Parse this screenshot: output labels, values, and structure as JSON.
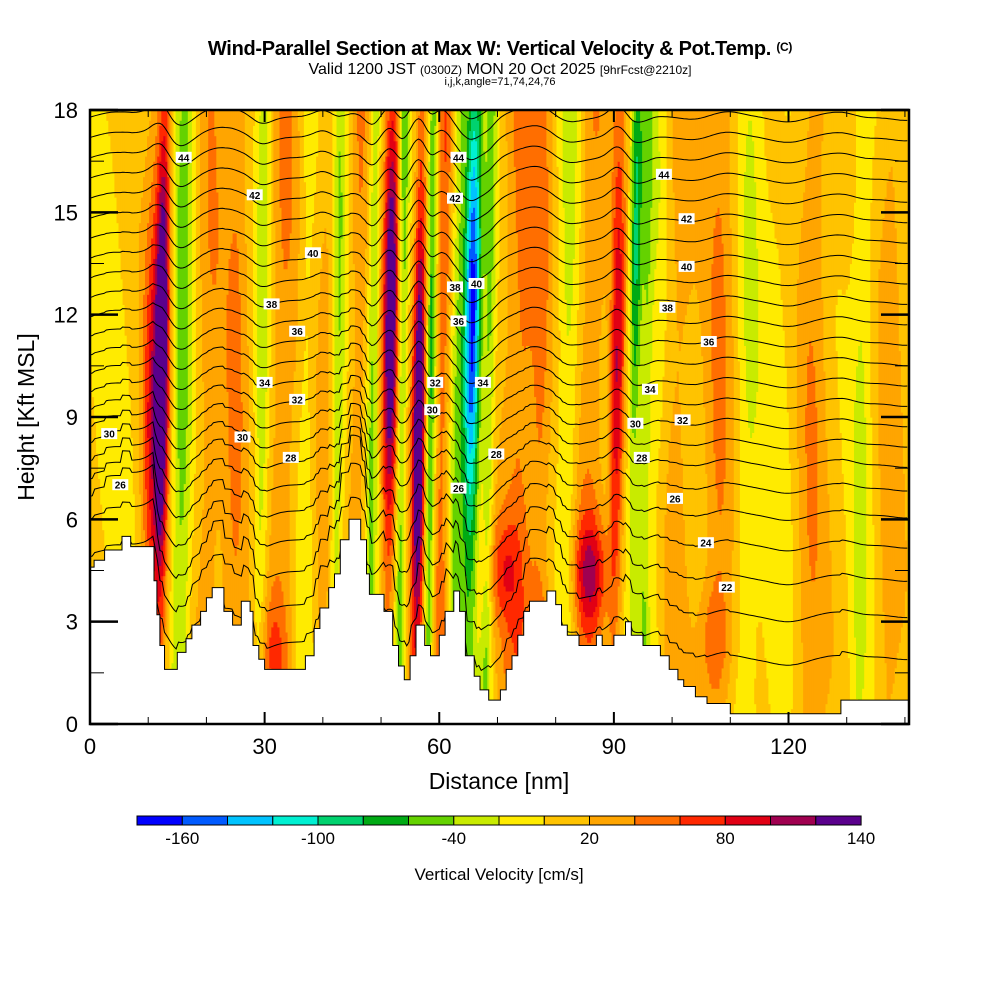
{
  "header": {
    "title": "Wind-Parallel Section at Max W: Vertical Velocity & Pot.Temp.",
    "copyright": "(C)",
    "valid_prefix": "Valid 1200 JST",
    "valid_utc": "(0300Z)",
    "valid_date": "MON 20 Oct 2025",
    "forecast": "[9hrFcst@2210z]",
    "indices": "i,j,k,angle=71,74,24,76"
  },
  "chart_data": {
    "type": "heatmap",
    "title": "Wind-Parallel Section at Max W: Vertical Velocity & Pot.Temp.",
    "xlabel": "Distance [nm]",
    "ylabel": "Height [Kft MSL]",
    "xlim": [
      0,
      140.7
    ],
    "ylim": [
      0,
      18
    ],
    "xticks": [
      0,
      30,
      60,
      90,
      120
    ],
    "xtick_labels": [
      "0",
      "30",
      "60",
      "90",
      "120"
    ],
    "yticks": [
      0,
      3,
      6,
      9,
      12,
      15,
      18
    ],
    "ytick_labels": [
      "0",
      "3",
      "6",
      "9",
      "12",
      "15",
      "18"
    ],
    "colorbar": {
      "title": "Vertical Velocity [cm/s]",
      "levels": [
        -180,
        -160,
        -140,
        -120,
        -100,
        -80,
        -60,
        -40,
        -20,
        0,
        20,
        40,
        60,
        80,
        100,
        120,
        140
      ],
      "labels": [
        "-160",
        "-100",
        "-40",
        "20",
        "80",
        "140"
      ],
      "label_values": [
        -160,
        -100,
        -40,
        20,
        80,
        140
      ],
      "colors": [
        "#0000ff",
        "#005aff",
        "#00c3ff",
        "#00f0d2",
        "#00d26e",
        "#00aa14",
        "#64d200",
        "#c8eb00",
        "#ffeb00",
        "#ffc300",
        "#ffa500",
        "#ff6e00",
        "#ff2800",
        "#e10014",
        "#a00050",
        "#5a008c"
      ]
    },
    "w_background": 8,
    "w_bands": [
      {
        "x": 3,
        "w": 4,
        "amp": -12
      },
      {
        "x": 10.5,
        "w": 1.6,
        "amp": 55,
        "zpeak": 9
      },
      {
        "x": 12.3,
        "w": 1.2,
        "amp": 130,
        "zpeak": 11
      },
      {
        "x": 15.8,
        "w": 1.8,
        "amp": -55
      },
      {
        "x": 20.5,
        "w": 2.5,
        "amp": 25
      },
      {
        "x": 25,
        "w": 2.0,
        "amp": 30
      },
      {
        "x": 29.5,
        "w": 1.3,
        "amp": -40
      },
      {
        "x": 33,
        "w": 2.5,
        "amp": 30
      },
      {
        "x": 37,
        "w": 1.5,
        "amp": -20
      },
      {
        "x": 40.5,
        "w": 1.5,
        "amp": 20
      },
      {
        "x": 42.5,
        "w": 1.2,
        "amp": -45
      },
      {
        "x": 46,
        "w": 1.5,
        "amp": 28
      },
      {
        "x": 48.5,
        "w": 1.0,
        "amp": -50
      },
      {
        "x": 51.5,
        "w": 1.3,
        "amp": 115,
        "zpeak": 12
      },
      {
        "x": 53.5,
        "w": 0.9,
        "amp": -60
      },
      {
        "x": 56.5,
        "w": 1.1,
        "amp": 130,
        "zpeak": 9
      },
      {
        "x": 58.5,
        "w": 0.9,
        "amp": -70
      },
      {
        "x": 60.5,
        "w": 1.3,
        "amp": 45
      },
      {
        "x": 63,
        "w": 1.2,
        "amp": -45
      },
      {
        "x": 65.5,
        "w": 1.5,
        "amp": -150,
        "zpeak": 12
      },
      {
        "x": 68.5,
        "w": 1.0,
        "amp": -50
      },
      {
        "x": 74,
        "w": 3.0,
        "amp": 40
      },
      {
        "x": 77.5,
        "w": 1.5,
        "amp": 25
      },
      {
        "x": 82,
        "w": 1.8,
        "amp": -35
      },
      {
        "x": 86,
        "w": 2.5,
        "amp": 30
      },
      {
        "x": 90.5,
        "w": 1.2,
        "amp": 75,
        "zpeak": 10
      },
      {
        "x": 93.5,
        "w": 1.1,
        "amp": -80,
        "zpeak": 14
      },
      {
        "x": 95.5,
        "w": 1.0,
        "amp": -45
      },
      {
        "x": 97.5,
        "w": 1.5,
        "amp": -20
      },
      {
        "x": 101,
        "w": 2.5,
        "amp": 22
      },
      {
        "x": 108,
        "w": 2.5,
        "amp": 30
      },
      {
        "x": 113,
        "w": 2.0,
        "amp": -25
      },
      {
        "x": 118,
        "w": 3.5,
        "amp": -15
      },
      {
        "x": 124,
        "w": 2.5,
        "amp": 28
      },
      {
        "x": 132.5,
        "w": 1.8,
        "amp": -30
      },
      {
        "x": 137.5,
        "w": 2.0,
        "amp": 20
      }
    ],
    "low_level_cells": [
      {
        "x": 71,
        "z": 4.5,
        "amp": 45
      },
      {
        "x": 86,
        "z": 4.5,
        "amp": 70
      },
      {
        "x": 107,
        "z": 2.5,
        "amp": 30
      },
      {
        "x": 31,
        "z": 2.2,
        "amp": 30
      },
      {
        "x": 78,
        "z": 2.5,
        "amp": 30
      }
    ],
    "terrain": [
      [
        0,
        4.6
      ],
      [
        0.7,
        4.6
      ],
      [
        0.7,
        4.8
      ],
      [
        2.5,
        4.8
      ],
      [
        2.5,
        5.1
      ],
      [
        5.5,
        5.1
      ],
      [
        5.5,
        5.5
      ],
      [
        7,
        5.5
      ],
      [
        7,
        5.2
      ],
      [
        11,
        5.2
      ],
      [
        11,
        4.2
      ],
      [
        11.5,
        4.2
      ],
      [
        11.5,
        3.2
      ],
      [
        12,
        3.2
      ],
      [
        12,
        2.3
      ],
      [
        12.8,
        2.3
      ],
      [
        12.8,
        1.6
      ],
      [
        15,
        1.6
      ],
      [
        15,
        2.1
      ],
      [
        16.5,
        2.1
      ],
      [
        16.5,
        2.5
      ],
      [
        17.5,
        2.5
      ],
      [
        17.5,
        2.9
      ],
      [
        19,
        2.9
      ],
      [
        19,
        3.3
      ],
      [
        20,
        3.3
      ],
      [
        20,
        3.7
      ],
      [
        21,
        3.7
      ],
      [
        21,
        4.0
      ],
      [
        23,
        4.0
      ],
      [
        23,
        3.3
      ],
      [
        24.5,
        3.3
      ],
      [
        24.5,
        2.9
      ],
      [
        26,
        2.9
      ],
      [
        26,
        3.6
      ],
      [
        27.5,
        3.6
      ],
      [
        27.5,
        3.3
      ],
      [
        28,
        3.3
      ],
      [
        28,
        2.3
      ],
      [
        29,
        2.3
      ],
      [
        29,
        1.9
      ],
      [
        30,
        1.9
      ],
      [
        30,
        1.6
      ],
      [
        37,
        1.6
      ],
      [
        37,
        2.0
      ],
      [
        38.5,
        2.0
      ],
      [
        38.5,
        2.8
      ],
      [
        39.5,
        2.8
      ],
      [
        39.5,
        3.4
      ],
      [
        41,
        3.4
      ],
      [
        41,
        4.0
      ],
      [
        42,
        4.0
      ],
      [
        42,
        4.4
      ],
      [
        43,
        4.4
      ],
      [
        43,
        5.4
      ],
      [
        44.5,
        5.4
      ],
      [
        44.5,
        6.0
      ],
      [
        46.5,
        6.0
      ],
      [
        46.5,
        5.4
      ],
      [
        47.5,
        5.4
      ],
      [
        47.5,
        4.4
      ],
      [
        48,
        4.4
      ],
      [
        48,
        3.8
      ],
      [
        50.5,
        3.8
      ],
      [
        50.5,
        3.3
      ],
      [
        52,
        3.3
      ],
      [
        52,
        2.3
      ],
      [
        53,
        2.3
      ],
      [
        53,
        1.7
      ],
      [
        54,
        1.7
      ],
      [
        54,
        1.3
      ],
      [
        55,
        1.3
      ],
      [
        55,
        2.0
      ],
      [
        56,
        2.0
      ],
      [
        56,
        2.9
      ],
      [
        57.5,
        2.9
      ],
      [
        57.5,
        2.3
      ],
      [
        58.5,
        2.3
      ],
      [
        58.5,
        2.0
      ],
      [
        60,
        2.0
      ],
      [
        60,
        2.6
      ],
      [
        61,
        2.6
      ],
      [
        61,
        3.3
      ],
      [
        62.5,
        3.3
      ],
      [
        62.5,
        3.9
      ],
      [
        63.5,
        3.9
      ],
      [
        63.5,
        3.3
      ],
      [
        64.5,
        3.3
      ],
      [
        64.5,
        2.0
      ],
      [
        66,
        2.0
      ],
      [
        66,
        1.4
      ],
      [
        67,
        1.4
      ],
      [
        67,
        1.0
      ],
      [
        68.5,
        1.0
      ],
      [
        68.5,
        0.7
      ],
      [
        70.5,
        0.7
      ],
      [
        70.5,
        1.0
      ],
      [
        71.5,
        1.0
      ],
      [
        71.5,
        1.6
      ],
      [
        72.5,
        1.6
      ],
      [
        72.5,
        2.0
      ],
      [
        73.5,
        2.0
      ],
      [
        73.5,
        2.6
      ],
      [
        74.5,
        2.6
      ],
      [
        74.5,
        3.3
      ],
      [
        75.5,
        3.3
      ],
      [
        75.5,
        3.6
      ],
      [
        78.5,
        3.6
      ],
      [
        78.5,
        3.9
      ],
      [
        80,
        3.9
      ],
      [
        80,
        3.5
      ],
      [
        81,
        3.5
      ],
      [
        81,
        2.9
      ],
      [
        82,
        2.9
      ],
      [
        82,
        2.6
      ],
      [
        84,
        2.6
      ],
      [
        84,
        2.3
      ],
      [
        87,
        2.3
      ],
      [
        87,
        2.6
      ],
      [
        88,
        2.6
      ],
      [
        88,
        2.3
      ],
      [
        90,
        2.3
      ],
      [
        90,
        2.6
      ],
      [
        92,
        2.6
      ],
      [
        92,
        3.0
      ],
      [
        93,
        3.0
      ],
      [
        93,
        2.6
      ],
      [
        95,
        2.6
      ],
      [
        95,
        2.3
      ],
      [
        98,
        2.3
      ],
      [
        98,
        2.0
      ],
      [
        99.5,
        2.0
      ],
      [
        99.5,
        1.6
      ],
      [
        101,
        1.6
      ],
      [
        101,
        1.3
      ],
      [
        102,
        1.3
      ],
      [
        102,
        1.1
      ],
      [
        104,
        1.1
      ],
      [
        104,
        0.8
      ],
      [
        106,
        0.8
      ],
      [
        106,
        0.6
      ],
      [
        110,
        0.6
      ],
      [
        110,
        0.3
      ],
      [
        115,
        0.3
      ],
      [
        115,
        0.3
      ],
      [
        119,
        0.3
      ],
      [
        119,
        0.3
      ],
      [
        125,
        0.3
      ],
      [
        125,
        0.3
      ],
      [
        129,
        0.3
      ],
      [
        129,
        0.7
      ],
      [
        140.7,
        0.7
      ],
      [
        140.7,
        0
      ]
    ],
    "theta_contours": {
      "levels": [
        21,
        22,
        23,
        24,
        25,
        26,
        27,
        28,
        29,
        30,
        31,
        32,
        33,
        34,
        35,
        36,
        37,
        38,
        39,
        40,
        41,
        42,
        43,
        44,
        45,
        46,
        47
      ],
      "base_heights_kft": [
        1.8,
        3.1,
        4.2,
        5.2,
        6.1,
        6.9,
        7.6,
        8.2,
        8.8,
        9.4,
        10.0,
        10.6,
        11.2,
        11.8,
        12.4,
        13.0,
        13.6,
        14.2,
        14.8,
        15.4,
        16.0,
        16.6,
        17.2,
        17.8,
        18.4,
        19.0,
        19.6
      ]
    },
    "contour_labels": [
      {
        "text": "44",
        "x": 16.1,
        "z": 16.6
      },
      {
        "text": "42",
        "x": 28.3,
        "z": 15.5
      },
      {
        "text": "40",
        "x": 38.3,
        "z": 13.8
      },
      {
        "text": "38",
        "x": 31.2,
        "z": 12.3
      },
      {
        "text": "36",
        "x": 35.6,
        "z": 11.5
      },
      {
        "text": "34",
        "x": 30,
        "z": 10.0
      },
      {
        "text": "32",
        "x": 35.6,
        "z": 9.5
      },
      {
        "text": "30",
        "x": 3.3,
        "z": 8.5
      },
      {
        "text": "30",
        "x": 26.2,
        "z": 8.4
      },
      {
        "text": "28",
        "x": 34.5,
        "z": 7.8
      },
      {
        "text": "26",
        "x": 5.2,
        "z": 7.0
      },
      {
        "text": "44",
        "x": 63.3,
        "z": 16.6
      },
      {
        "text": "42",
        "x": 62.7,
        "z": 15.4
      },
      {
        "text": "40",
        "x": 66.4,
        "z": 12.9
      },
      {
        "text": "38",
        "x": 62.7,
        "z": 12.8
      },
      {
        "text": "36",
        "x": 63.3,
        "z": 11.8
      },
      {
        "text": "34",
        "x": 67.5,
        "z": 10.0
      },
      {
        "text": "32",
        "x": 59.3,
        "z": 10.0
      },
      {
        "text": "30",
        "x": 58.8,
        "z": 9.2
      },
      {
        "text": "28",
        "x": 69.8,
        "z": 7.9
      },
      {
        "text": "26",
        "x": 63.3,
        "z": 6.9
      },
      {
        "text": "44",
        "x": 98.6,
        "z": 16.1
      },
      {
        "text": "42",
        "x": 102.5,
        "z": 14.8
      },
      {
        "text": "40",
        "x": 102.5,
        "z": 13.4
      },
      {
        "text": "38",
        "x": 99.2,
        "z": 12.2
      },
      {
        "text": "36",
        "x": 106.3,
        "z": 11.2
      },
      {
        "text": "34",
        "x": 96.2,
        "z": 9.8
      },
      {
        "text": "32",
        "x": 101.8,
        "z": 8.9
      },
      {
        "text": "30",
        "x": 93.7,
        "z": 8.8
      },
      {
        "text": "28",
        "x": 94.8,
        "z": 7.8
      },
      {
        "text": "26",
        "x": 100.5,
        "z": 6.6
      },
      {
        "text": "24",
        "x": 105.8,
        "z": 5.3
      },
      {
        "text": "22",
        "x": 109.4,
        "z": 4.0
      }
    ]
  }
}
